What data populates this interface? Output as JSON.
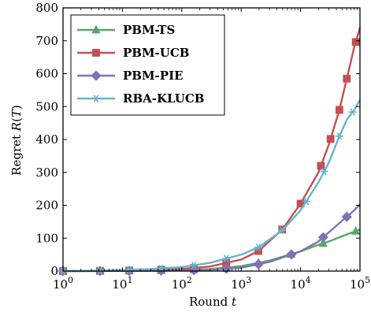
{
  "chart_data": {
    "type": "line",
    "xscale": "log",
    "xlim": [
      1,
      100000
    ],
    "ylim": [
      0,
      800
    ],
    "xlabel": "Round t",
    "ylabel": "Regret R(T)",
    "xticks": [
      {
        "value": 1,
        "base": "10",
        "exp": "0"
      },
      {
        "value": 10,
        "base": "10",
        "exp": "1"
      },
      {
        "value": 100,
        "base": "10",
        "exp": "2"
      },
      {
        "value": 1000,
        "base": "10",
        "exp": "3"
      },
      {
        "value": 10000,
        "base": "10",
        "exp": "4"
      },
      {
        "value": 100000,
        "base": "10",
        "exp": "5"
      }
    ],
    "yticks": [
      0,
      100,
      200,
      300,
      400,
      500,
      600,
      700,
      800
    ],
    "legend_position": "top-left",
    "series": [
      {
        "name": "PBM-TS",
        "color": "#55a868",
        "marker": "triangle",
        "x": [
          1,
          3,
          10,
          30,
          100,
          300,
          1000,
          3000,
          10000,
          20000,
          30000,
          50000,
          70000,
          100000
        ],
        "y": [
          0,
          0.3,
          0.8,
          1.5,
          3,
          6,
          15,
          32,
          60,
          80,
          90,
          106,
          116,
          126
        ],
        "markers_x": [
          1,
          4.2,
          13,
          45,
          160,
          560,
          1950,
          6900,
          24000,
          85000
        ]
      },
      {
        "name": "PBM-UCB",
        "color": "#c44e52",
        "marker": "square",
        "x": [
          1,
          3,
          10,
          30,
          100,
          300,
          1000,
          2000,
          5000,
          10000,
          20000,
          30000,
          45000,
          60000,
          80000,
          100000
        ],
        "y": [
          0,
          0.5,
          1.5,
          3,
          6,
          14,
          35,
          62,
          128,
          205,
          300,
          385,
          490,
          585,
          680,
          740
        ],
        "markers_x": [
          1,
          4.2,
          13,
          45,
          160,
          560,
          1950,
          4900,
          10000,
          22000,
          32000,
          45000,
          60000,
          85000
        ]
      },
      {
        "name": "PBM-PIE",
        "color": "#8172b2",
        "marker": "diamond",
        "x": [
          1,
          3,
          10,
          30,
          100,
          300,
          1000,
          3000,
          10000,
          20000,
          30000,
          50000,
          70000,
          100000
        ],
        "y": [
          0,
          0.2,
          0.5,
          1,
          2,
          4,
          10,
          28,
          60,
          90,
          118,
          153,
          175,
          202
        ],
        "markers_x": [
          1,
          4.2,
          13,
          45,
          160,
          560,
          1950,
          7000,
          24000,
          60000
        ]
      },
      {
        "name": "RBA-KLUCB",
        "color": "#64b5cd",
        "marker": "star",
        "x": [
          1,
          3,
          10,
          30,
          100,
          300,
          1000,
          2000,
          5000,
          10000,
          20000,
          30000,
          45000,
          60000,
          80000,
          100000
        ],
        "y": [
          0,
          1,
          3,
          6,
          12,
          25,
          50,
          73,
          125,
          185,
          270,
          330,
          410,
          460,
          490,
          520
        ],
        "markers_x": [
          1,
          4.2,
          13,
          45,
          160,
          560,
          1950,
          4900,
          12500,
          25000,
          45000,
          75000
        ]
      }
    ]
  }
}
